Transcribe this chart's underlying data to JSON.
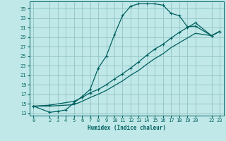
{
  "xlabel": "Humidex (Indice chaleur)",
  "bg_color": "#c0e8e8",
  "grid_color": "#98c8c8",
  "line_color": "#006060",
  "xlim": [
    -0.5,
    23.5
  ],
  "ylim": [
    12.5,
    36.5
  ],
  "xticks": [
    0,
    2,
    3,
    4,
    5,
    6,
    7,
    8,
    9,
    10,
    11,
    12,
    13,
    14,
    15,
    16,
    17,
    18,
    19,
    20,
    22,
    23
  ],
  "yticks": [
    13,
    15,
    17,
    19,
    21,
    23,
    25,
    27,
    29,
    31,
    33,
    35
  ],
  "curve1_x": [
    0,
    2,
    3,
    4,
    5,
    6,
    7,
    8,
    9,
    10,
    11,
    12,
    13,
    14,
    15,
    16,
    17,
    18,
    19,
    20,
    22,
    23
  ],
  "curve1_y": [
    14.5,
    13.2,
    13.4,
    13.7,
    15.2,
    16.5,
    18.0,
    22.5,
    25.0,
    29.5,
    33.5,
    35.5,
    36.0,
    36.0,
    36.0,
    35.7,
    34.0,
    33.5,
    31.2,
    31.3,
    29.3,
    30.2
  ],
  "curve2_x": [
    0,
    2,
    5,
    6,
    7,
    8,
    9,
    10,
    11,
    12,
    13,
    14,
    15,
    16,
    17,
    18,
    19,
    20,
    22,
    23
  ],
  "curve2_y": [
    14.5,
    14.7,
    15.5,
    16.3,
    17.3,
    18.0,
    19.0,
    20.2,
    21.3,
    22.5,
    23.8,
    25.2,
    26.5,
    27.5,
    28.8,
    30.0,
    31.0,
    32.0,
    29.3,
    30.2
  ],
  "curve3_x": [
    0,
    2,
    5,
    6,
    7,
    8,
    9,
    10,
    11,
    12,
    13,
    14,
    15,
    16,
    17,
    18,
    19,
    20,
    22,
    23
  ],
  "curve3_y": [
    14.5,
    14.5,
    14.8,
    15.5,
    16.3,
    17.0,
    17.8,
    18.8,
    19.8,
    21.0,
    22.0,
    23.3,
    24.5,
    25.5,
    26.8,
    27.8,
    28.8,
    29.8,
    29.3,
    30.2
  ]
}
